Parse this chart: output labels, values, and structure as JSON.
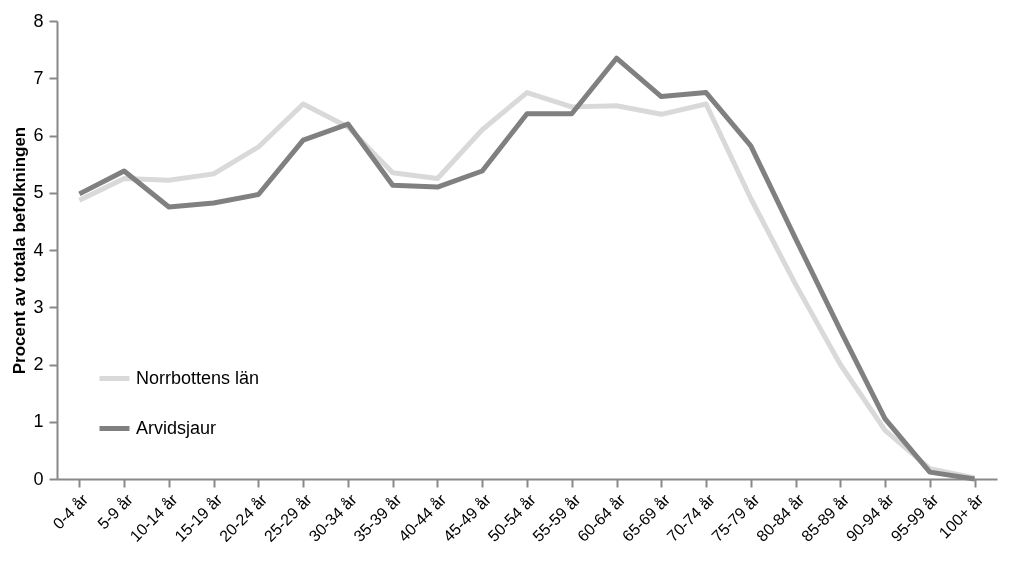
{
  "chart_data": {
    "type": "line",
    "ylabel": "Procent av totala befolkningen",
    "categories": [
      "0-4 år",
      "5-9 år",
      "10-14 år",
      "15-19 år",
      "20-24 år",
      "25-29 år",
      "30-34 år",
      "35-39 år",
      "40-44 år",
      "45-49 år",
      "50-54 år",
      "55-59 år",
      "60-64 år",
      "65-69 år",
      "70-74 år",
      "75-79 år",
      "80-84 år",
      "85-89 år",
      "90-94 år",
      "95-99 år",
      "100+ år"
    ],
    "series": [
      {
        "name": "Norrbottens län",
        "color": "#d9d9d9",
        "values": [
          4.87,
          5.25,
          5.22,
          5.33,
          5.8,
          6.55,
          6.15,
          5.35,
          5.25,
          6.1,
          6.75,
          6.5,
          6.52,
          6.37,
          6.55,
          4.9,
          3.4,
          2.0,
          0.85,
          0.18,
          0.02
        ]
      },
      {
        "name": "Arvidsjaur",
        "color": "#808080",
        "values": [
          4.98,
          5.38,
          4.75,
          4.82,
          4.97,
          5.92,
          6.2,
          5.13,
          5.1,
          5.38,
          6.38,
          6.38,
          7.35,
          6.68,
          6.75,
          5.82,
          4.2,
          2.6,
          1.05,
          0.12,
          0.0
        ]
      }
    ],
    "ylim": [
      0,
      8
    ],
    "yticks": [
      0,
      1,
      2,
      3,
      4,
      5,
      6,
      7,
      8
    ],
    "grid": false,
    "legend": "bottom left",
    "line_style": "solid"
  }
}
